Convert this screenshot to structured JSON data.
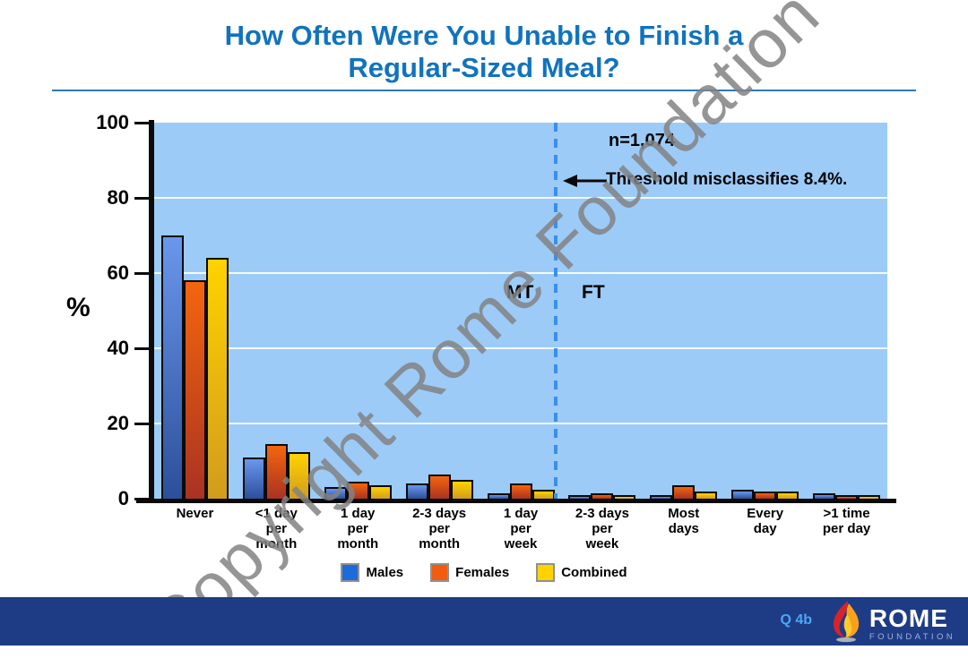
{
  "title": {
    "line1": "How Often Were You Unable to Finish a",
    "line2": "Regular-Sized Meal?"
  },
  "watermark": "Copyright Rome Foundation",
  "chart_data": {
    "type": "bar",
    "title": "How Often Were You Unable to Finish a Regular-Sized Meal?",
    "xlabel": "",
    "ylabel": "%",
    "ylim": [
      0,
      100
    ],
    "yticks": [
      0,
      20,
      40,
      60,
      80,
      100
    ],
    "gridlines": [
      20,
      40,
      60,
      80
    ],
    "grid": "horizontal",
    "plot_background": "#9CCBF8",
    "legend_position": "bottom",
    "categories": [
      "Never",
      "<1 day\nper\nmonth",
      "1 day\nper\nmonth",
      "2-3 days\nper\nmonth",
      "1 day\nper\nweek",
      "2-3 days\nper\nweek",
      "Most\ndays",
      "Every\nday",
      ">1 time\nper day"
    ],
    "series": [
      {
        "name": "Males",
        "color": "#1C6BD8",
        "gradient_top": "#6A97EC",
        "gradient_bottom": "#2C4F9A",
        "values": [
          70,
          11,
          3,
          4,
          1.5,
          1,
          1,
          2.5,
          1.5
        ]
      },
      {
        "name": "Females",
        "color": "#F25C11",
        "gradient_top": "#F4650E",
        "gradient_bottom": "#A93222",
        "values": [
          58,
          14.5,
          4.5,
          6.5,
          4,
          1.5,
          3.5,
          2,
          1
        ]
      },
      {
        "name": "Combined",
        "color": "#FFD301",
        "gradient_top": "#FFD200",
        "gradient_bottom": "#D19C1D",
        "values": [
          64,
          12.5,
          3.5,
          5,
          2.5,
          1,
          2,
          2,
          1
        ]
      }
    ],
    "annotations": {
      "n_label": "n=1,074",
      "threshold_note": "Threshold misclassifies 8.4%.",
      "mt_label": "MT",
      "ft_label": "FT",
      "threshold_line_color": "#3B8FE8",
      "threshold_line_between_categories": [
        "1 day per week",
        "2-3 days per week"
      ]
    }
  },
  "footer": {
    "question_number": "Q 4b",
    "logo_title": "ROME",
    "logo_subtitle": "FOUNDATION"
  }
}
